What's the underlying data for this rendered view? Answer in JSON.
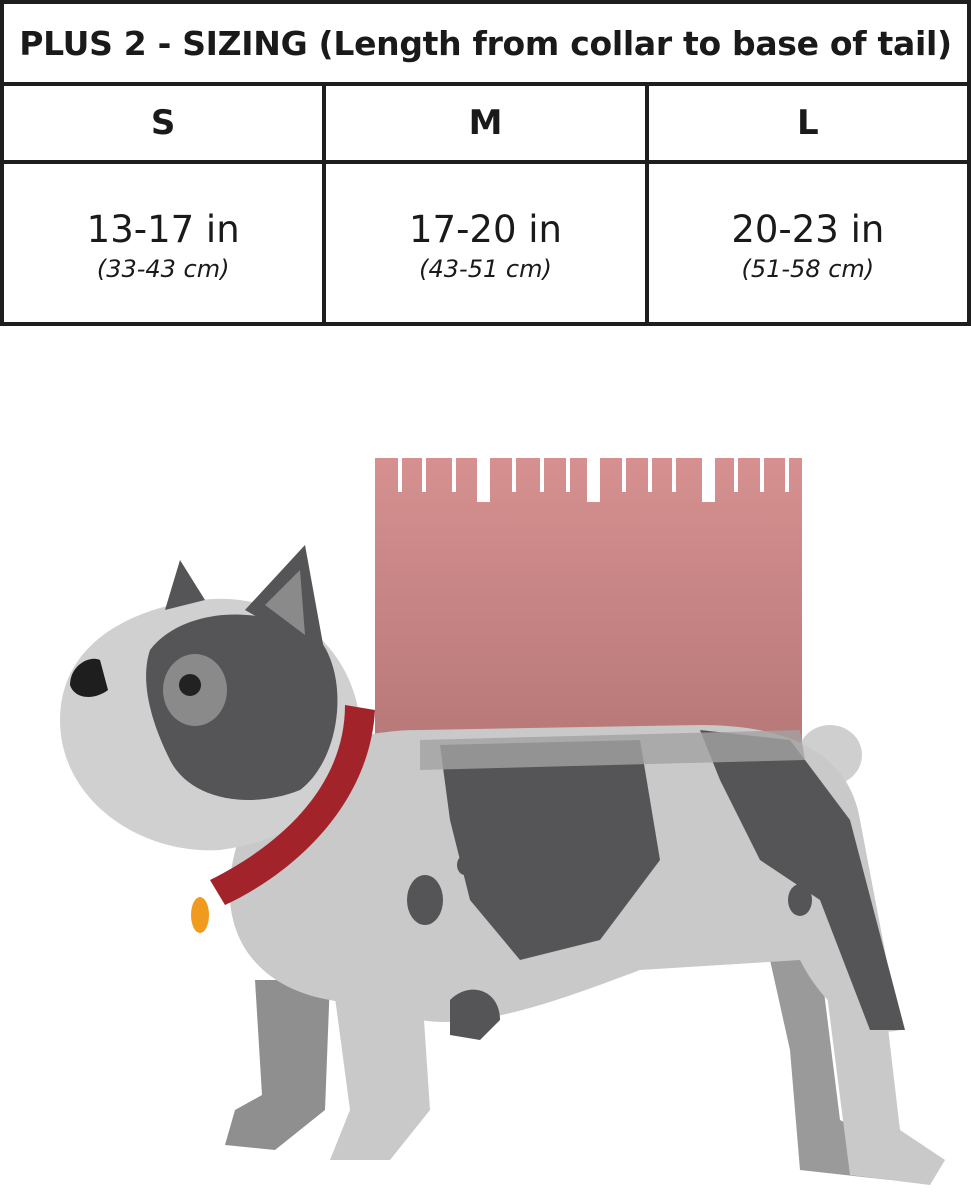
{
  "title": "PLUS 2 - SIZING (Length from collar to base of tail)",
  "sizes": [
    {
      "label": "S",
      "inches": "13-17 in",
      "cm": "(33-43 cm)"
    },
    {
      "label": "M",
      "inches": "17-20 in",
      "cm": "(43-51 cm)"
    },
    {
      "label": "L",
      "inches": "20-23 in",
      "cm": "(51-58 cm)"
    }
  ],
  "illustration": {
    "subject": "dog-with-ruler-icon",
    "colors": {
      "ruler": "#d08c8c",
      "collar": "#a3232b",
      "tag": "#f09a1e",
      "coat_dark": "#545355",
      "coat_light": "#c9c9c9"
    }
  }
}
